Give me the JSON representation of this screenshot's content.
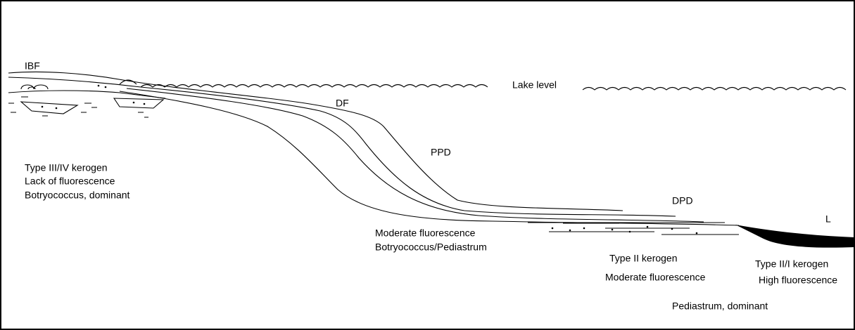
{
  "zones": {
    "ibf": "IBF",
    "lake_level": "Lake level",
    "df": "DF",
    "ppd": "PPD",
    "dpd": "DPD",
    "l": "L"
  },
  "descriptions": {
    "ibf_zone": [
      "Type III/IV kerogen",
      "Lack of fluorescence",
      "Botryococcus, dominant"
    ],
    "slope_zone": [
      "Moderate fluorescence",
      "Botryococcus/Pediastrum"
    ],
    "dpd_zone": [
      "Type II kerogen",
      "Moderate fluorescence"
    ],
    "l_zone": [
      "Type II/I kerogen",
      "High fluorescence"
    ],
    "basin": "Pediastrum, dominant"
  }
}
